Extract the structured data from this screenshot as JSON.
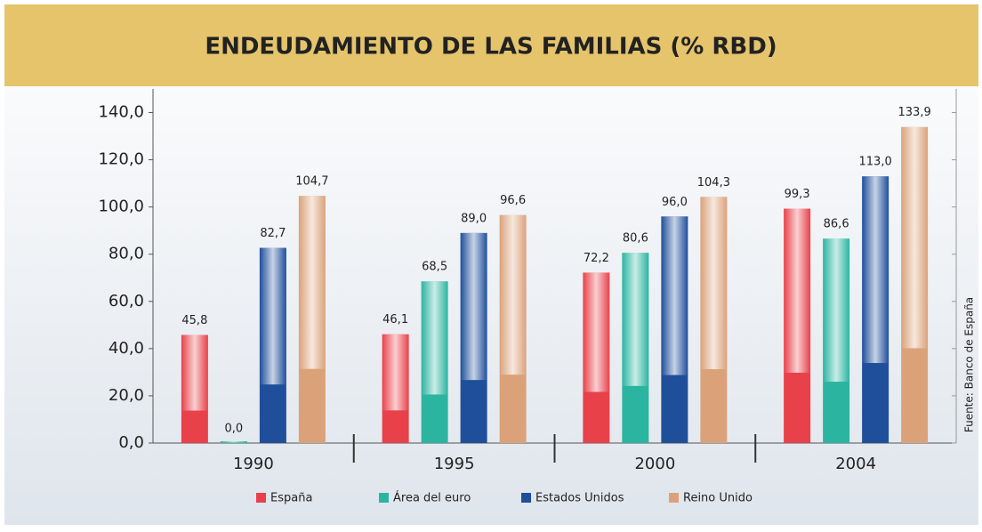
{
  "chart_data": {
    "type": "bar",
    "title": "ENDEUDAMIENTO DE LAS FAMILIAS (% RBD)",
    "source": "Fuente: Banco de España",
    "categories": [
      "1990",
      "1995",
      "2000",
      "2004"
    ],
    "series": [
      {
        "name": "España",
        "color": "#e8414a",
        "values": [
          45.8,
          46.1,
          72.2,
          99.3
        ],
        "value_labels": [
          "45,8",
          "46,1",
          "72,2",
          "99,3"
        ]
      },
      {
        "name": "Área del euro",
        "color": "#2bb5a0",
        "values": [
          0.0,
          68.5,
          80.6,
          86.6
        ],
        "value_labels": [
          "0,0",
          "68,5",
          "80,6",
          "86,6"
        ]
      },
      {
        "name": "Estados Unidos",
        "color": "#1f4f9a",
        "values": [
          82.7,
          89.0,
          96.0,
          113.0
        ],
        "value_labels": [
          "82,7",
          "89,0",
          "96,0",
          "113,0"
        ]
      },
      {
        "name": "Reino Unido",
        "color": "#dba27a",
        "values": [
          104.7,
          96.6,
          104.3,
          133.9
        ],
        "value_labels": [
          "104,7",
          "96,6",
          "104,3",
          "133,9"
        ]
      }
    ],
    "ylim": [
      0,
      150
    ],
    "yticks": [
      {
        "value": 0,
        "label": "0,0"
      },
      {
        "value": 20,
        "label": "20,0"
      },
      {
        "value": 40,
        "label": "40,0"
      },
      {
        "value": 60,
        "label": "60,0"
      },
      {
        "value": 80,
        "label": "80,0"
      },
      {
        "value": 100,
        "label": "100,0"
      },
      {
        "value": 120,
        "label": "120,0"
      },
      {
        "value": 140,
        "label": "140,0"
      }
    ],
    "legend": "bottom"
  }
}
